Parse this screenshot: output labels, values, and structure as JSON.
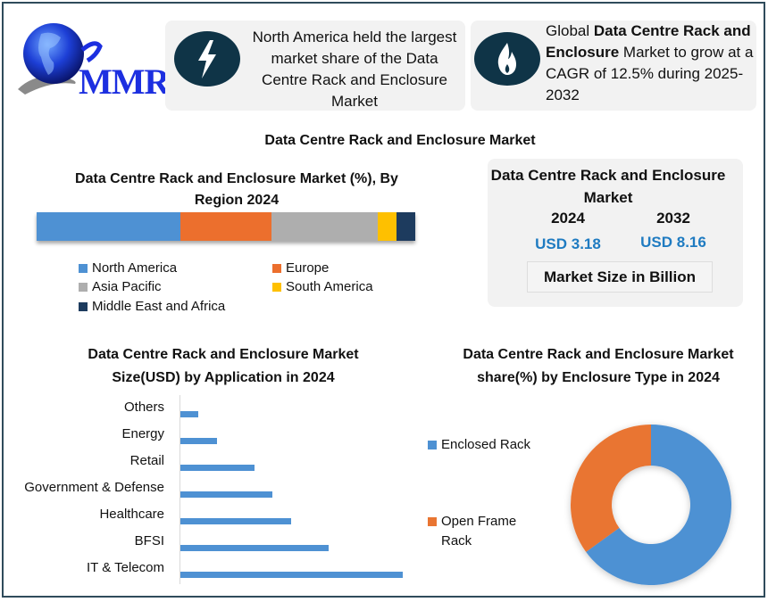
{
  "logo": {
    "text": "MMR",
    "icon": "globe-logo-icon"
  },
  "highlights": [
    {
      "icon": "lightning-bolt-icon",
      "text": "North America held the largest market share of the Data Centre Rack and Enclosure Market"
    },
    {
      "icon": "flame-icon",
      "pre": "Global ",
      "bold": "Data Centre Rack and Enclosure",
      "post": " Market to grow at a CAGR of 12.5% during 2025-2032"
    }
  ],
  "main_title": "Data Centre Rack and Enclosure Market",
  "market_size_card": {
    "title": "Data Centre Rack and Enclosure Market",
    "years": [
      {
        "year": "2024",
        "value": "USD 3.18"
      },
      {
        "year": "2032",
        "value": "USD 8.16"
      }
    ],
    "unit_label": "Market Size in Billion",
    "value_color": "#1f7bc1"
  },
  "chart_data": [
    {
      "type": "bar",
      "orientation": "stacked-horizontal",
      "title": "Data Centre Rack and Enclosure Market (%), By Region 2024",
      "categories": [
        "North America",
        "Europe",
        "Asia Pacific",
        "South America",
        "Middle East and Africa"
      ],
      "values": [
        38,
        24,
        28,
        5,
        5
      ],
      "unit": "%",
      "colors": [
        "#4e91d3",
        "#ec6f2d",
        "#aeaeae",
        "#fec000",
        "#1d3b5e"
      ],
      "legend_position": "bottom",
      "grid": false
    },
    {
      "type": "bar",
      "orientation": "horizontal",
      "title": "Data Centre Rack and Enclosure Market Size(USD)  by Application in 2024",
      "categories": [
        "Others",
        "Energy",
        "Retail",
        "Government & Defense",
        "Healthcare",
        "BFSI",
        "IT & Telecom"
      ],
      "values": [
        8,
        16.5,
        33.4,
        41.4,
        49.8,
        66.7,
        100
      ],
      "unit": "relative (no axis shown)",
      "xlim": [
        0,
        100
      ],
      "color": "#4e91d3",
      "xlabel": "",
      "ylabel": "",
      "grid": false
    },
    {
      "type": "pie",
      "variant": "donut",
      "title": "Data Centre Rack and Enclosure Market share(%)  by Enclosure Type in 2024",
      "categories": [
        "Enclosed Rack",
        "Open Frame Rack"
      ],
      "values": [
        65,
        35
      ],
      "colors": [
        "#4e91d3",
        "#e97532"
      ],
      "legend_position": "left"
    }
  ]
}
